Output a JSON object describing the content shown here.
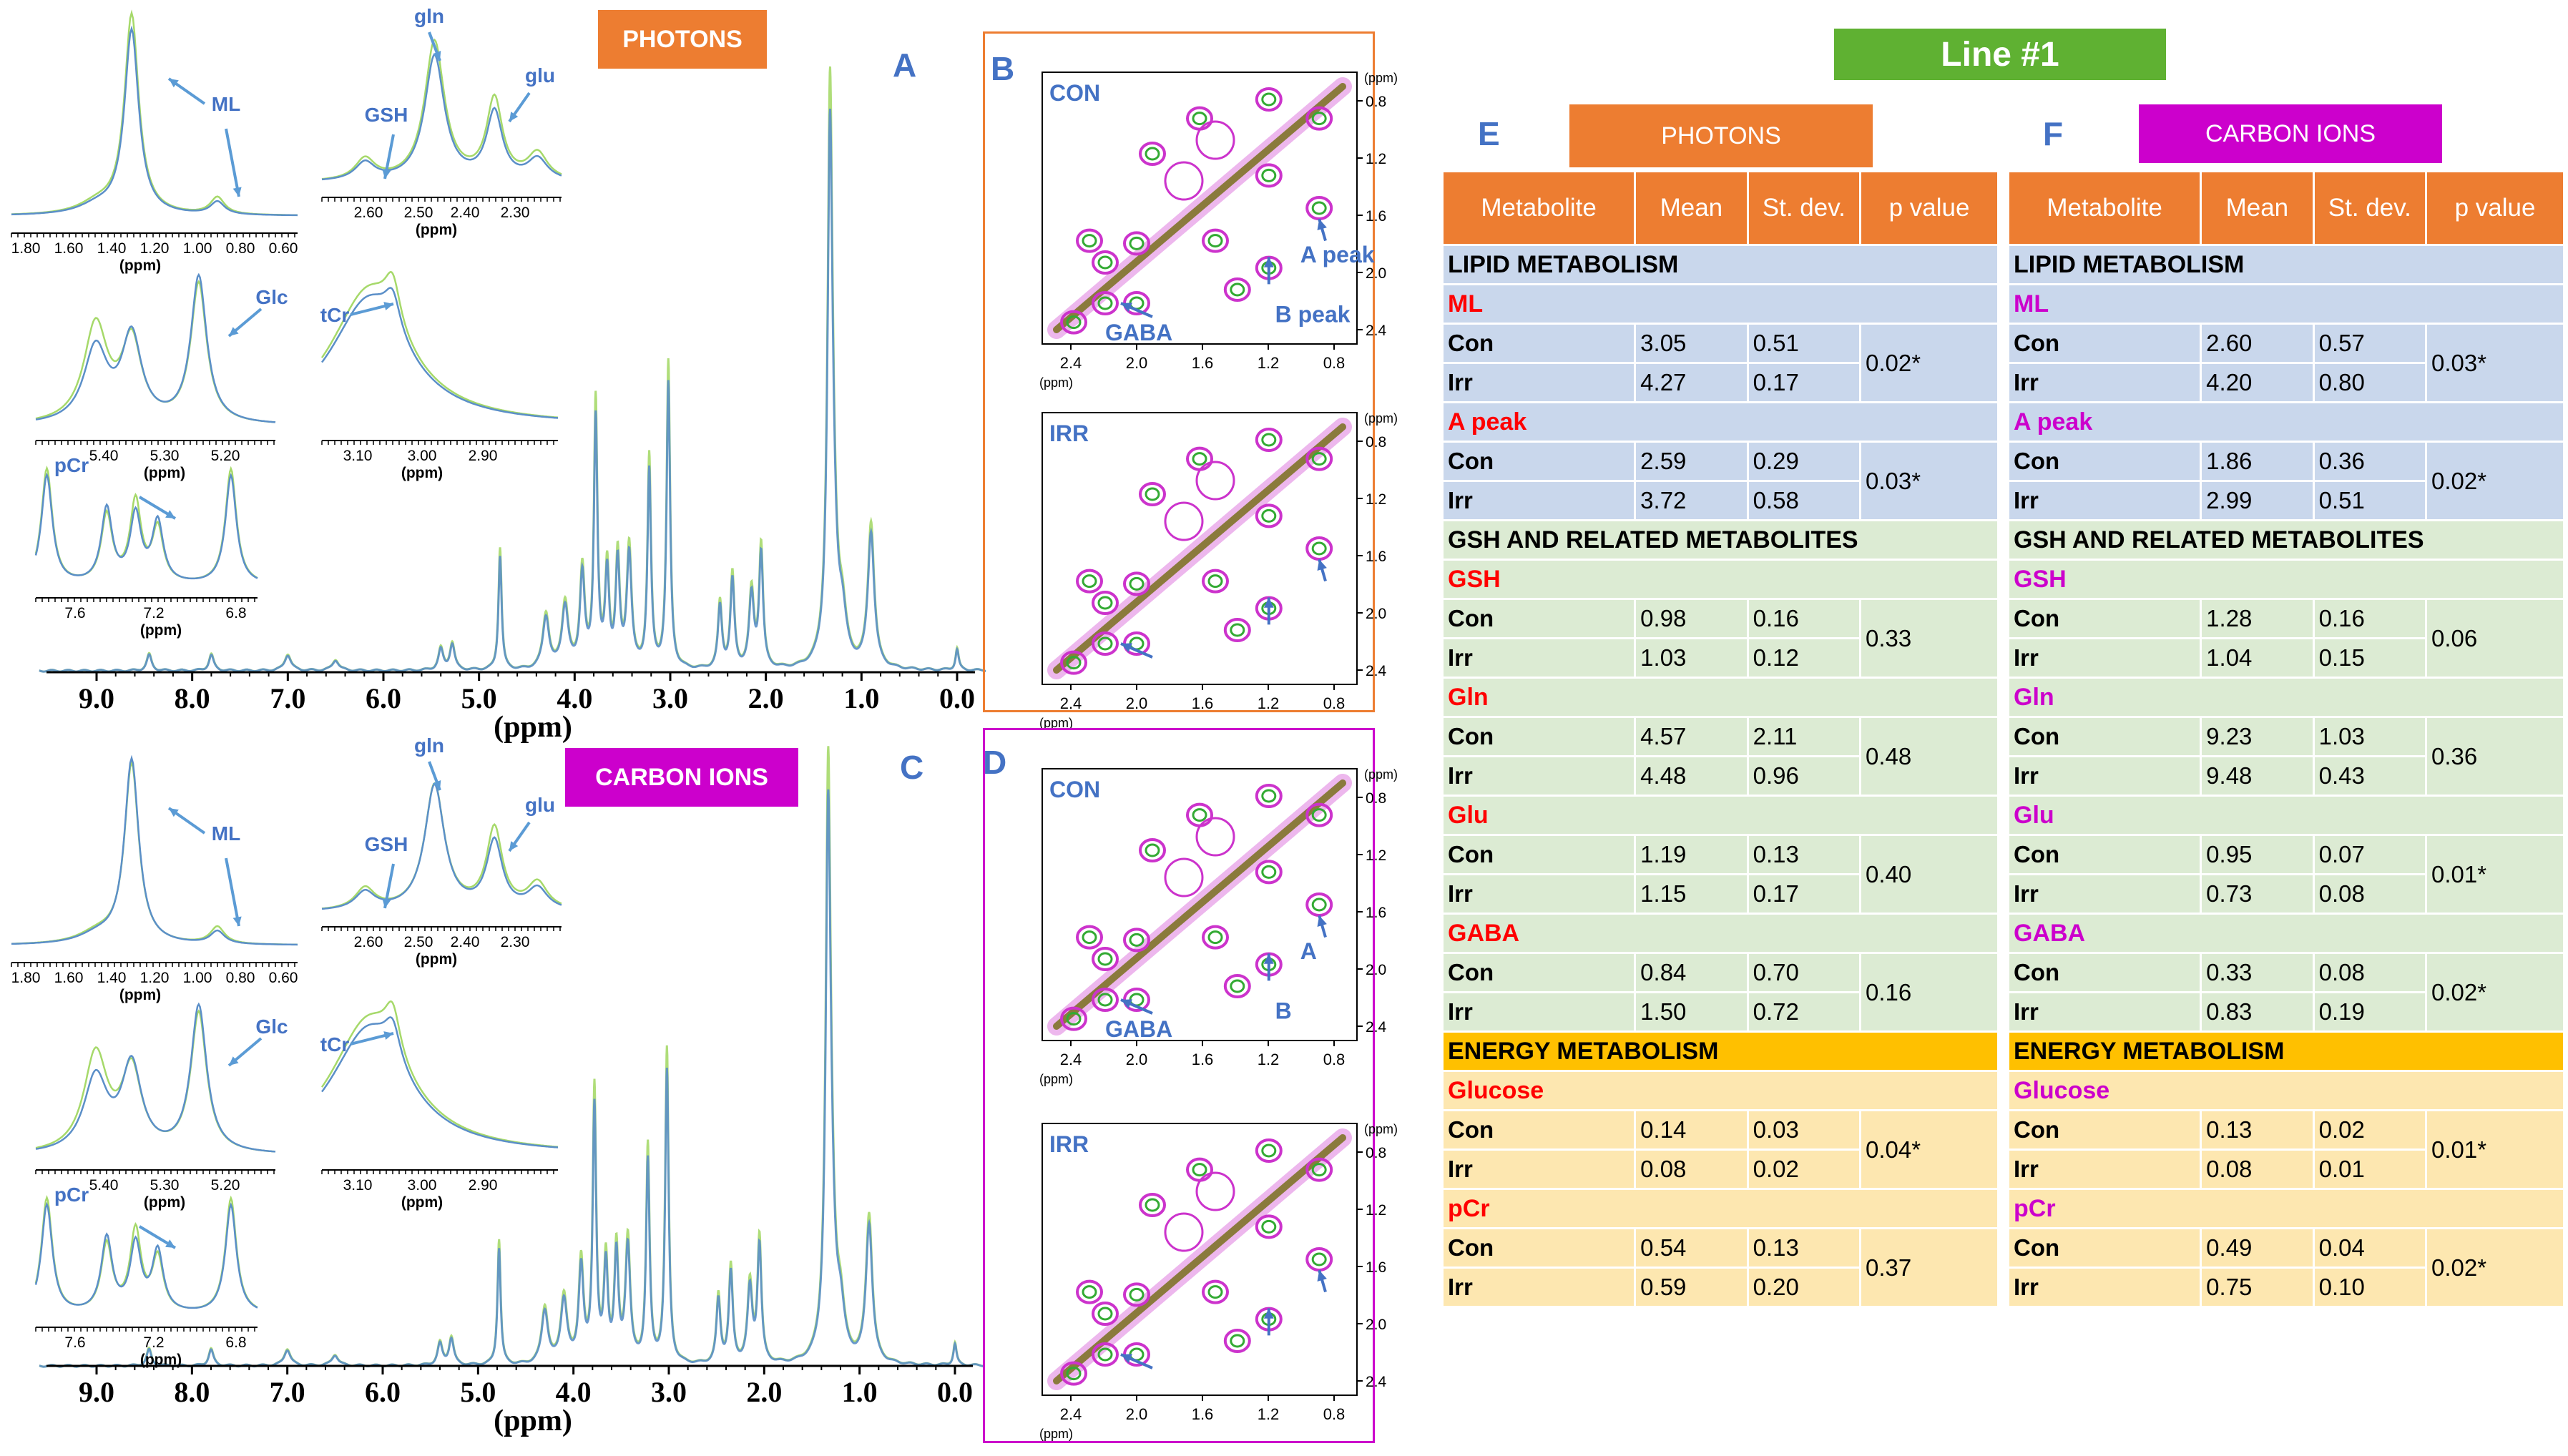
{
  "panel_letters": {
    "A": "A",
    "B": "B",
    "C": "C",
    "D": "D",
    "E": "E",
    "F": "F"
  },
  "badges": {
    "photons_chart": "PHOTONS",
    "carbon_chart": "CARBON IONS",
    "line": "Line #1",
    "photons_table": "PHOTONS",
    "carbon_table": "CARBON IONS"
  },
  "colors": {
    "orange": "#ed7d31",
    "magenta": "#cc00cc",
    "green": "#5fb132",
    "blue_label": "#4472c4",
    "lipid_bg": "#c9d7ec",
    "gsh_bg": "#dcebd3",
    "energy_hdr": "#ffc000",
    "energy_bg": "#fde7b0",
    "metab_red": "#ff0000"
  },
  "spectra": {
    "xlabel": "(ppm)",
    "ticks": [
      "9.0",
      "8.0",
      "7.0",
      "6.0",
      "5.0",
      "4.0",
      "3.0",
      "2.0",
      "1.0",
      "0.0"
    ],
    "series_colors": [
      "#a6d96a",
      "#5b8fc8"
    ]
  },
  "insets_top": {
    "ml": {
      "ticks": [
        "1.80",
        "1.60",
        "1.40",
        "1.20",
        "1.00",
        "0.80",
        "0.60"
      ],
      "unit": "(ppm)",
      "label": "ML"
    },
    "gsh": {
      "ticks": [
        "2.60",
        "2.50",
        "2.40",
        "2.30"
      ],
      "unit": "(ppm)",
      "gln": "gln",
      "glu": "glu",
      "gsh": "GSH"
    },
    "glc": {
      "ticks": [
        "5.40",
        "5.30",
        "5.20"
      ],
      "unit": "(ppm)",
      "label": "Glc"
    },
    "tcr": {
      "ticks": [
        "3.10",
        "3.00",
        "2.90"
      ],
      "unit": "(ppm)",
      "label": "tCr"
    },
    "pcr": {
      "ticks": [
        "7.6",
        "7.2",
        "6.8"
      ],
      "unit": "(ppm)",
      "label": "pCr"
    }
  },
  "cosy": {
    "con": "CON",
    "irr": "IRR",
    "unit": "(ppm)",
    "xticks": [
      "2.4",
      "2.0",
      "1.6",
      "1.2",
      "0.8"
    ],
    "yticks": [
      "0.8",
      "1.2",
      "1.6",
      "2.0",
      "2.4"
    ],
    "b_labels": {
      "a": "A peak",
      "b": "B peak",
      "gaba": "GABA"
    },
    "d_labels": {
      "a": "A",
      "b": "B",
      "gaba": "GABA"
    }
  },
  "table_headers": [
    "Metabolite",
    "Mean",
    "St. dev.",
    "p value"
  ],
  "sections": {
    "lipid": "LIPID METABOLISM",
    "gsh": "GSH AND RELATED METABOLITES",
    "energy": "ENERGY METABOLISM"
  },
  "row_labels": {
    "con": "Con",
    "irr": "Irr"
  },
  "table_E": [
    {
      "name": "ML",
      "con_mean": "3.05",
      "con_sd": "0.51",
      "irr_mean": "4.27",
      "irr_sd": "0.17",
      "p": "0.02*"
    },
    {
      "name": "A peak",
      "con_mean": "2.59",
      "con_sd": "0.29",
      "irr_mean": "3.72",
      "irr_sd": "0.58",
      "p": "0.03*"
    },
    {
      "name": "GSH",
      "con_mean": "0.98",
      "con_sd": "0.16",
      "irr_mean": "1.03",
      "irr_sd": "0.12",
      "p": "0.33"
    },
    {
      "name": "Gln",
      "con_mean": "4.57",
      "con_sd": "2.11",
      "irr_mean": "4.48",
      "irr_sd": "0.96",
      "p": "0.48"
    },
    {
      "name": "Glu",
      "con_mean": "1.19",
      "con_sd": "0.13",
      "irr_mean": "1.15",
      "irr_sd": "0.17",
      "p": "0.40"
    },
    {
      "name": "GABA",
      "con_mean": "0.84",
      "con_sd": "0.70",
      "irr_mean": "1.50",
      "irr_sd": "0.72",
      "p": "0.16"
    },
    {
      "name": "Glucose",
      "con_mean": "0.14",
      "con_sd": "0.03",
      "irr_mean": "0.08",
      "irr_sd": "0.02",
      "p": "0.04*"
    },
    {
      "name": "pCr",
      "con_mean": "0.54",
      "con_sd": "0.13",
      "irr_mean": "0.59",
      "irr_sd": "0.20",
      "p": "0.37"
    }
  ],
  "table_F": [
    {
      "name": "ML",
      "con_mean": "2.60",
      "con_sd": "0.57",
      "irr_mean": "4.20",
      "irr_sd": "0.80",
      "p": "0.03*"
    },
    {
      "name": "A peak",
      "con_mean": "1.86",
      "con_sd": "0.36",
      "irr_mean": "2.99",
      "irr_sd": "0.51",
      "p": "0.02*"
    },
    {
      "name": "GSH",
      "con_mean": "1.28",
      "con_sd": "0.16",
      "irr_mean": "1.04",
      "irr_sd": "0.15",
      "p": "0.06"
    },
    {
      "name": "Gln",
      "con_mean": "9.23",
      "con_sd": "1.03",
      "irr_mean": "9.48",
      "irr_sd": "0.43",
      "p": "0.36"
    },
    {
      "name": "Glu",
      "con_mean": "0.95",
      "con_sd": "0.07",
      "irr_mean": "0.73",
      "irr_sd": "0.08",
      "p": "0.01*"
    },
    {
      "name": "GABA",
      "con_mean": "0.33",
      "con_sd": "0.08",
      "irr_mean": "0.83",
      "irr_sd": "0.19",
      "p": "0.02*"
    },
    {
      "name": "Glucose",
      "con_mean": "0.13",
      "con_sd": "0.02",
      "irr_mean": "0.08",
      "irr_sd": "0.01",
      "p": "0.01*"
    },
    {
      "name": "pCr",
      "con_mean": "0.49",
      "con_sd": "0.04",
      "irr_mean": "0.75",
      "irr_sd": "0.10",
      "p": "0.02*"
    }
  ]
}
